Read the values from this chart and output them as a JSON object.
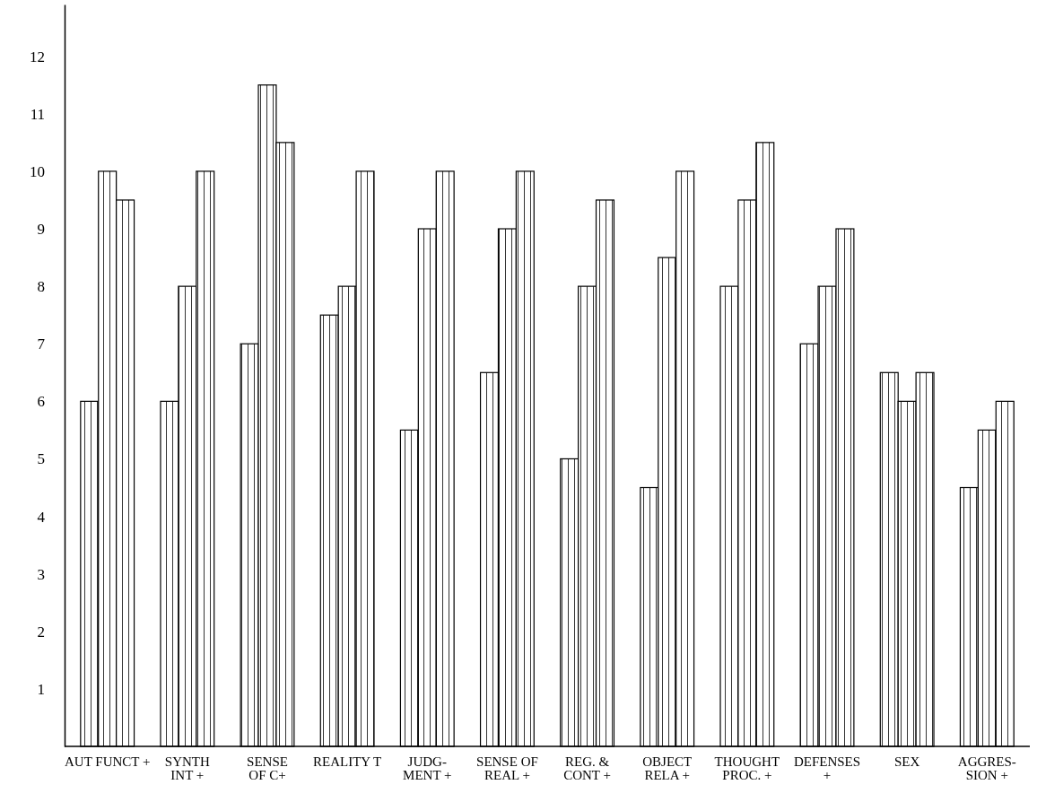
{
  "chart_data": {
    "type": "bar",
    "categories": [
      "AUT FUNCT +",
      "SYNTH\nINT +",
      "SENSE\nOF C+",
      "REALITY T",
      "JUDG-\nMENT +",
      "SENSE OF\nREAL +",
      "REG. &\nCONT +",
      "OBJECT\nRELA +",
      "THOUGHT\nPROC. +",
      "DEFENSES\n+",
      "SEX",
      "AGGRES-\nSION +"
    ],
    "series": [
      {
        "color": "#000000",
        "values": [
          6,
          6,
          7,
          7.5,
          5.5,
          6.5,
          5,
          4.5,
          8,
          7,
          6.5,
          4.5
        ]
      },
      {
        "color": "#000000",
        "values": [
          10,
          8,
          11.5,
          8,
          9,
          9,
          8,
          8.5,
          9.5,
          8,
          6,
          5.5
        ]
      },
      {
        "color": "#000000",
        "values": [
          9.5,
          10,
          10.5,
          10,
          10,
          10,
          9.5,
          10,
          10.5,
          9,
          6.5,
          6
        ]
      }
    ],
    "ylim": [
      0,
      12.9
    ],
    "yticks": [
      1,
      2,
      3,
      4,
      5,
      6,
      7,
      8,
      9,
      10,
      11,
      12
    ],
    "grid": false
  }
}
